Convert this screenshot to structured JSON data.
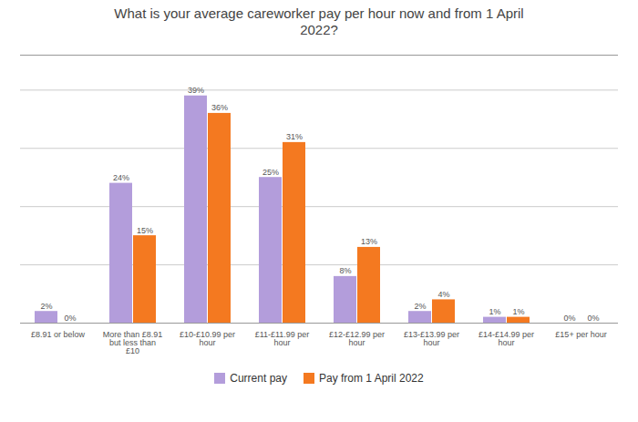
{
  "chart_data": {
    "type": "bar",
    "title": "What is your average careworker pay per hour now and from 1 April\n2022?",
    "categories": [
      "£8.91 or below",
      "More than £8.91\nbut less than\n£10",
      "£10-£10.99 per\nhour",
      "£11-£11.99 per\nhour",
      "£12-£12.99 per\nhour",
      "£13-£13.99 per\nhour",
      "£14-£14.99 per\nhour",
      "£15+ per hour"
    ],
    "series": [
      {
        "name": "Current pay",
        "color": "#b39ddb",
        "values": [
          2,
          24,
          39,
          25,
          8,
          2,
          1,
          0
        ],
        "value_labels": [
          "2%",
          "24%",
          "39%",
          "25%",
          "8%",
          "2%",
          "1%",
          "0%"
        ]
      },
      {
        "name": "Pay from 1 April 2022",
        "color": "#f47920",
        "values": [
          0,
          15,
          36,
          31,
          13,
          4,
          1,
          0
        ],
        "value_labels": [
          "0%",
          "15%",
          "36%",
          "31%",
          "13%",
          "4%",
          "1%",
          "0%"
        ]
      }
    ],
    "ylim": [
      0,
      46
    ],
    "yticks": [
      0,
      10,
      20,
      30,
      40
    ],
    "grid": true,
    "data_labels": true,
    "tick_labels": "x",
    "legend": "bottom"
  }
}
